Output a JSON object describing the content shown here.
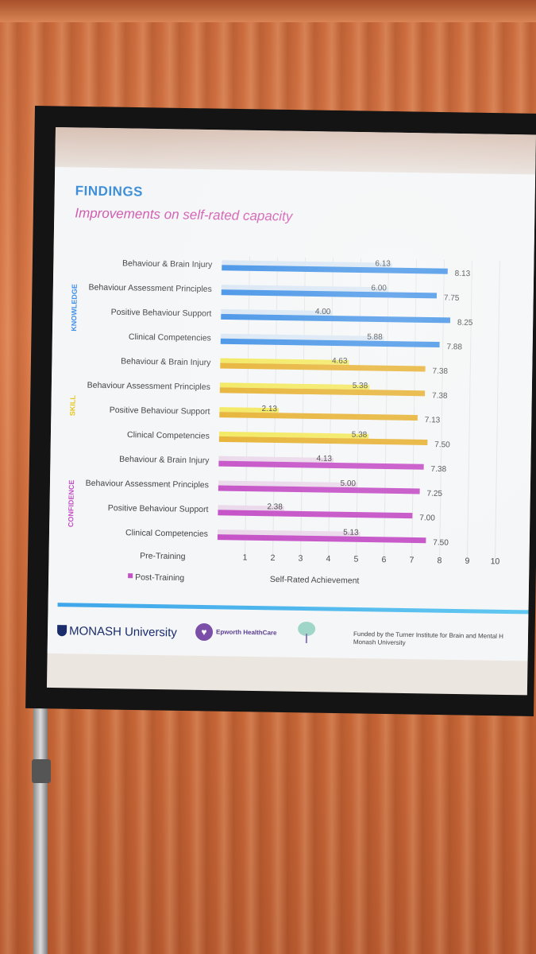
{
  "slide": {
    "heading": "FINDINGS",
    "subheading": "Improvements on self-rated capacity",
    "footer": {
      "monash": "MONASH University",
      "epworth": "Epworth HealthCare",
      "funded_line1": "Funded by the Turner Institute for Brain and Mental H",
      "funded_line2": "Monash University"
    }
  },
  "colors": {
    "knowledge_post": "#3e8fe6",
    "knowledge_pre": "#d8e6f4",
    "skill_post": "#e6b02e",
    "skill_pre": "#f2e85a",
    "confidence_post": "#c44fc6",
    "confidence_pre": "#ead8ea",
    "knowledge_label": "#3e8fe6",
    "skill_label": "#e6c61e",
    "confidence_label": "#c44fc6"
  },
  "chart_data": {
    "type": "bar",
    "orientation": "horizontal",
    "xlabel": "Self-Rated Achievement",
    "xlim": [
      0,
      10
    ],
    "xticks": [
      1,
      2,
      3,
      4,
      5,
      6,
      7,
      8,
      9,
      10
    ],
    "legend": [
      {
        "label": "Pre-Training",
        "marker": false
      },
      {
        "label": "Post-Training",
        "marker": true
      }
    ],
    "groups": [
      {
        "name": "KNOWLEDGE",
        "categories": [
          "Behaviour & Brain Injury",
          "Behaviour Assessment Principles",
          "Positive Behaviour Support",
          "Clinical Competencies"
        ],
        "pre": [
          6.13,
          6.0,
          4.0,
          5.88
        ],
        "post": [
          8.13,
          7.75,
          8.25,
          7.88
        ]
      },
      {
        "name": "SKILL",
        "categories": [
          "Behaviour & Brain Injury",
          "Behaviour Assessment Principles",
          "Positive Behaviour Support",
          "Clinical Competencies"
        ],
        "pre": [
          4.63,
          5.38,
          2.13,
          5.38
        ],
        "post": [
          7.38,
          7.38,
          7.13,
          7.5
        ]
      },
      {
        "name": "CONFIDENCE",
        "categories": [
          "Behaviour & Brain Injury",
          "Behaviour Assessment Principles",
          "Positive Behaviour Support",
          "Clinical Competencies"
        ],
        "pre": [
          4.13,
          5.0,
          2.38,
          5.13
        ],
        "post": [
          7.38,
          7.25,
          7.0,
          7.5
        ]
      }
    ]
  }
}
